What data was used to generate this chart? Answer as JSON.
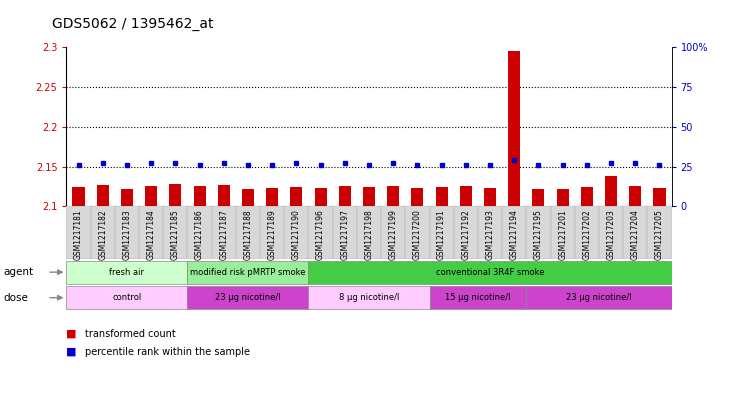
{
  "title": "GDS5062 / 1395462_at",
  "samples": [
    "GSM1217181",
    "GSM1217182",
    "GSM1217183",
    "GSM1217184",
    "GSM1217185",
    "GSM1217186",
    "GSM1217187",
    "GSM1217188",
    "GSM1217189",
    "GSM1217190",
    "GSM1217196",
    "GSM1217197",
    "GSM1217198",
    "GSM1217199",
    "GSM1217200",
    "GSM1217191",
    "GSM1217192",
    "GSM1217193",
    "GSM1217194",
    "GSM1217195",
    "GSM1217201",
    "GSM1217202",
    "GSM1217203",
    "GSM1217204",
    "GSM1217205"
  ],
  "transformed_counts": [
    2.124,
    2.127,
    2.122,
    2.126,
    2.128,
    2.125,
    2.127,
    2.122,
    2.123,
    2.124,
    2.123,
    2.126,
    2.124,
    2.125,
    2.123,
    2.124,
    2.125,
    2.123,
    2.295,
    2.122,
    2.122,
    2.124,
    2.138,
    2.126,
    2.123
  ],
  "percentile_ranks": [
    26,
    27,
    26,
    27,
    27,
    26,
    27,
    26,
    26,
    27,
    26,
    27,
    26,
    27,
    26,
    26,
    26,
    26,
    29,
    26,
    26,
    26,
    27,
    27,
    26
  ],
  "bar_color": "#cc0000",
  "dot_color": "#0000cc",
  "ylim_left": [
    2.1,
    2.3
  ],
  "ylim_right": [
    0,
    100
  ],
  "yticks_left": [
    2.1,
    2.15,
    2.2,
    2.25,
    2.3
  ],
  "yticks_right": [
    0,
    25,
    50,
    75,
    100
  ],
  "ytick_labels_left": [
    "2.1",
    "2.15",
    "2.2",
    "2.25",
    "2.3"
  ],
  "ytick_labels_right": [
    "0",
    "25",
    "50",
    "75",
    "100%"
  ],
  "hlines": [
    2.15,
    2.2,
    2.25
  ],
  "agent_groups": [
    {
      "label": "fresh air",
      "start": 0,
      "end": 5,
      "color": "#ccffcc"
    },
    {
      "label": "modified risk pMRTP smoke",
      "start": 5,
      "end": 10,
      "color": "#99ee99"
    },
    {
      "label": "conventional 3R4F smoke",
      "start": 10,
      "end": 25,
      "color": "#44cc44"
    }
  ],
  "dose_groups": [
    {
      "label": "control",
      "start": 0,
      "end": 5,
      "color": "#ffccff"
    },
    {
      "label": "23 μg nicotine/l",
      "start": 5,
      "end": 10,
      "color": "#cc44cc"
    },
    {
      "label": "8 μg nicotine/l",
      "start": 10,
      "end": 15,
      "color": "#ffccff"
    },
    {
      "label": "15 μg nicotine/l",
      "start": 15,
      "end": 19,
      "color": "#cc44cc"
    },
    {
      "label": "23 μg nicotine/l",
      "start": 19,
      "end": 25,
      "color": "#cc44cc"
    }
  ],
  "legend_items": [
    {
      "label": "transformed count",
      "color": "#cc0000"
    },
    {
      "label": "percentile rank within the sample",
      "color": "#0000cc"
    }
  ],
  "background_color": "#ffffff",
  "title_fontsize": 10,
  "tick_fontsize": 7,
  "bar_width": 0.5,
  "n_samples": 25
}
